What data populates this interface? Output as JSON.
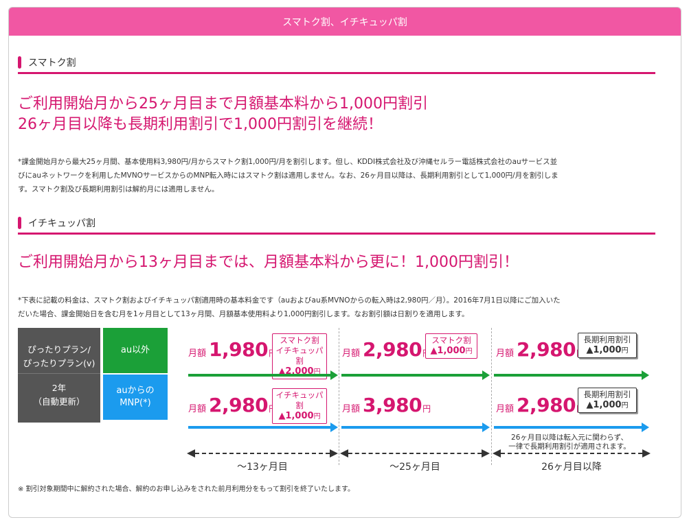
{
  "header": {
    "title": "スマトク割、イチキュッパ割"
  },
  "section1": {
    "title": "スマトク割",
    "headline_line1": "ご利用開始月から25ヶ月目まで月額基本料から1,000円割引",
    "headline_line2": "26ヶ月目以降も長期利用割引で1,000円割引を継続！",
    "note_line1": "*課金開始月から最大25ヶ月間、基本使用料3,980円/月からスマトク割1,000円/月を割引します。但し、KDDI株式会社及び沖縄セルラー電話株式会社のauサービス並",
    "note_line2": "びにauネットワークを利用したMVNOサービスからのMNP転入時にはスマトク割は適用しません。なお、26ヶ月目以降は、長期利用割引として1,000円/月を割引しま",
    "note_line3": "す。スマトク割及び長期利用割引は解約月には適用しません。"
  },
  "section2": {
    "title": "イチキュッパ割",
    "headline": "ご利用開始月から13ヶ月目までは、月額基本料から更に！1,000円割引！",
    "note_line1": "*下表に記載の料金は、スマトク割およびイチキュッパ割適用時の基本料金です（auおよびau系MVNOからの転入時は2,980円／月）。2016年7月1日以降にご加入いた",
    "note_line2": "だいた場合、課金開始日を含む月を1ヶ月目として13ヶ月間、月額基本使用料より1,000円割引します。なお割引額は日割りを適用します。"
  },
  "table": {
    "plan_line1": "ぴったりプラン/",
    "plan_line2": "ぴったりプラン(v)",
    "term_line1": "2年",
    "term_line2": "（自動更新）",
    "cat_other": "au以外",
    "cat_mnp_line1": "auからの",
    "cat_mnp_line2": "MNP(*)",
    "price_label": "月額",
    "price_unit": "円",
    "row1": {
      "p1": "1,980",
      "p2": "2,980",
      "p3": "2,980",
      "b1_line1": "スマトク割",
      "b1_line2": "イチキュッパ割",
      "b1_value": "▲2,000",
      "b1_unit": "円",
      "b2_line1": "スマトク割",
      "b2_value": "▲1,000",
      "b2_unit": "円",
      "b3_line1": "長期利用割引",
      "b3_value": "▲1,000",
      "b3_unit": "円"
    },
    "row2": {
      "p1": "2,980",
      "p2": "3,980",
      "p3": "2,980",
      "b1_line1": "イチキュッパ割",
      "b1_value": "▲1,000",
      "b1_unit": "円",
      "b3_line1": "長期利用割引",
      "b3_value": "▲1,000",
      "b3_unit": "円"
    },
    "mnp_note_line1": "26ヶ月目以降は転入元に関わらず、",
    "mnp_note_line2": "一律で長期利用割引が適用されます。",
    "period1": "〜13ヶ月目",
    "period2": "〜25ヶ月目",
    "period3": "26ヶ月目以降"
  },
  "footer_note": "※ 割引対象期間中に解約された場合、解約のお申し込みをされた前月利用分をもって割引を終了いたします。",
  "colors": {
    "accent": "#d5166f",
    "header": "#f157a3",
    "green": "#1ba038",
    "blue": "#1b9bee",
    "plan_bg": "#555555"
  }
}
